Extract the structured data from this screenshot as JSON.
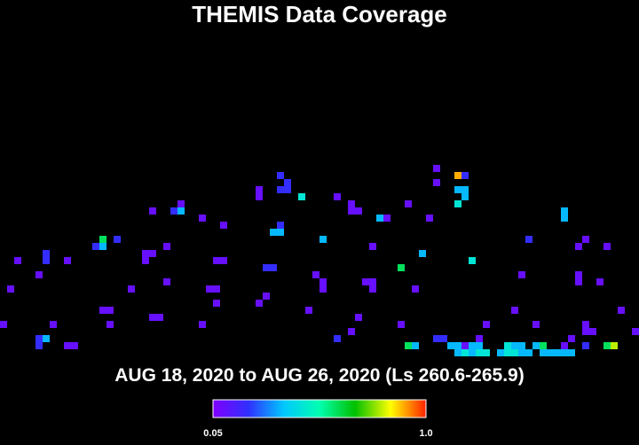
{
  "chart_data": {
    "type": "heatmap",
    "title": "THEMIS Data Coverage",
    "subtitle": "AUG 18, 2020 to AUG 26, 2020 (Ls 260.6-265.9)",
    "colormap": [
      "#8000ff",
      "#3030ff",
      "#00c8ff",
      "#00ffb0",
      "#00c000",
      "#ffff00",
      "#ff2000"
    ],
    "colorbar_lim": [
      0.05,
      1
    ],
    "colorbar_ticks": [
      0.05,
      {
        "value": 1,
        "label": "1.0"
      }
    ],
    "cells": [
      [
        61,
        0,
        0.1
      ],
      [
        61,
        2,
        0.1
      ],
      [
        64,
        1,
        0.9
      ],
      [
        65,
        1,
        0.2
      ],
      [
        64,
        3,
        0.35
      ],
      [
        65,
        3,
        0.35
      ],
      [
        65,
        4,
        0.35
      ],
      [
        64,
        5,
        0.45
      ],
      [
        39,
        1,
        0.2
      ],
      [
        40,
        2,
        0.2
      ],
      [
        39,
        3,
        0.2
      ],
      [
        40,
        3,
        0.2
      ],
      [
        36,
        3,
        0.1
      ],
      [
        36,
        4,
        0.1
      ],
      [
        42,
        4,
        0.45
      ],
      [
        47,
        4,
        0.1
      ],
      [
        49,
        5,
        0.1
      ],
      [
        49,
        6,
        0.1
      ],
      [
        50,
        6,
        0.1
      ],
      [
        57,
        5,
        0.1
      ],
      [
        25,
        5,
        0.1
      ],
      [
        25,
        6,
        0.35
      ],
      [
        24,
        6,
        0.2
      ],
      [
        21,
        6,
        0.1
      ],
      [
        28,
        7,
        0.1
      ],
      [
        31,
        8,
        0.1
      ],
      [
        53,
        7,
        0.35
      ],
      [
        54,
        7,
        0.1
      ],
      [
        60,
        7,
        0.1
      ],
      [
        79,
        6,
        0.35
      ],
      [
        79,
        7,
        0.35
      ],
      [
        39,
        8,
        0.2
      ],
      [
        38,
        9,
        0.35
      ],
      [
        39,
        9,
        0.35
      ],
      [
        45,
        10,
        0.35
      ],
      [
        52,
        11,
        0.1
      ],
      [
        74,
        10,
        0.2
      ],
      [
        82,
        10,
        0.1
      ],
      [
        81,
        11,
        0.1
      ],
      [
        85,
        11,
        0.1
      ],
      [
        14,
        10,
        0.6
      ],
      [
        13,
        11,
        0.2
      ],
      [
        14,
        11,
        0.35
      ],
      [
        16,
        10,
        0.2
      ],
      [
        23,
        11,
        0.1
      ],
      [
        20,
        12,
        0.1
      ],
      [
        21,
        12,
        0.1
      ],
      [
        20,
        13,
        0.1
      ],
      [
        6,
        12,
        0.2
      ],
      [
        6,
        13,
        0.2
      ],
      [
        2,
        13,
        0.1
      ],
      [
        9,
        13,
        0.1
      ],
      [
        5,
        15,
        0.1
      ],
      [
        30,
        13,
        0.1
      ],
      [
        31,
        13,
        0.1
      ],
      [
        37,
        14,
        0.2
      ],
      [
        38,
        14,
        0.2
      ],
      [
        56,
        14,
        0.6
      ],
      [
        59,
        12,
        0.35
      ],
      [
        66,
        13,
        0.45
      ],
      [
        73,
        15,
        0.1
      ],
      [
        81,
        15,
        0.1
      ],
      [
        81,
        16,
        0.1
      ],
      [
        84,
        16,
        0.1
      ],
      [
        44,
        15,
        0.1
      ],
      [
        45,
        16,
        0.1
      ],
      [
        45,
        17,
        0.1
      ],
      [
        51,
        16,
        0.1
      ],
      [
        52,
        16,
        0.1
      ],
      [
        52,
        17,
        0.1
      ],
      [
        23,
        16,
        0.1
      ],
      [
        30,
        17,
        0.1
      ],
      [
        30,
        19,
        0.1
      ],
      [
        29,
        17,
        0.1
      ],
      [
        1,
        17,
        0.1
      ],
      [
        18,
        17,
        0.1
      ],
      [
        37,
        18,
        0.1
      ],
      [
        36,
        19,
        0.1
      ],
      [
        58,
        17,
        0.1
      ],
      [
        43,
        20,
        0.1
      ],
      [
        15,
        20,
        0.1
      ],
      [
        14,
        20,
        0.1
      ],
      [
        15,
        22,
        0.1
      ],
      [
        21,
        21,
        0.1
      ],
      [
        22,
        21,
        0.1
      ],
      [
        50,
        21,
        0.1
      ],
      [
        72,
        20,
        0.1
      ],
      [
        75,
        22,
        0.1
      ],
      [
        82,
        22,
        0.1
      ],
      [
        87,
        20,
        0.1
      ],
      [
        0,
        22,
        0.1
      ],
      [
        7,
        22,
        0.1
      ],
      [
        28,
        22,
        0.1
      ],
      [
        56,
        22,
        0.1
      ],
      [
        68,
        22,
        0.1
      ],
      [
        67,
        24,
        0.1
      ],
      [
        83,
        23,
        0.1
      ],
      [
        89,
        23,
        0.1
      ],
      [
        5,
        24,
        0.2
      ],
      [
        6,
        24,
        0.35
      ],
      [
        5,
        25,
        0.2
      ],
      [
        9,
        25,
        0.1
      ],
      [
        10,
        25,
        0.1
      ],
      [
        47,
        24,
        0.2
      ],
      [
        49,
        23,
        0.1
      ],
      [
        57,
        25,
        0.6
      ],
      [
        58,
        25,
        0.35
      ],
      [
        61,
        24,
        0.2
      ],
      [
        62,
        24,
        0.2
      ],
      [
        63,
        25,
        0.35
      ],
      [
        64,
        25,
        0.35
      ],
      [
        65,
        25,
        0.1
      ],
      [
        66,
        25,
        0.35
      ],
      [
        67,
        25,
        0.35
      ],
      [
        71,
        25,
        0.45
      ],
      [
        72,
        25,
        0.35
      ],
      [
        73,
        25,
        0.35
      ],
      [
        75,
        25,
        0.35
      ],
      [
        76,
        25,
        0.6
      ],
      [
        79,
        25,
        0.1
      ],
      [
        82,
        25,
        0.2
      ],
      [
        85,
        25,
        0.6
      ],
      [
        86,
        25,
        0.8
      ],
      [
        80,
        24,
        0.1
      ],
      [
        82,
        23,
        0.1
      ],
      [
        64,
        26,
        0.35
      ],
      [
        65,
        26,
        0.45
      ],
      [
        66,
        26,
        0.35
      ],
      [
        67,
        26,
        0.45
      ],
      [
        68,
        26,
        0.45
      ],
      [
        70,
        26,
        0.35
      ],
      [
        71,
        26,
        0.45
      ],
      [
        72,
        26,
        0.45
      ],
      [
        73,
        26,
        0.35
      ],
      [
        74,
        26,
        0.35
      ],
      [
        76,
        26,
        0.35
      ],
      [
        77,
        26,
        0.35
      ],
      [
        78,
        26,
        0.35
      ],
      [
        79,
        26,
        0.35
      ],
      [
        80,
        26,
        0.35
      ]
    ]
  }
}
